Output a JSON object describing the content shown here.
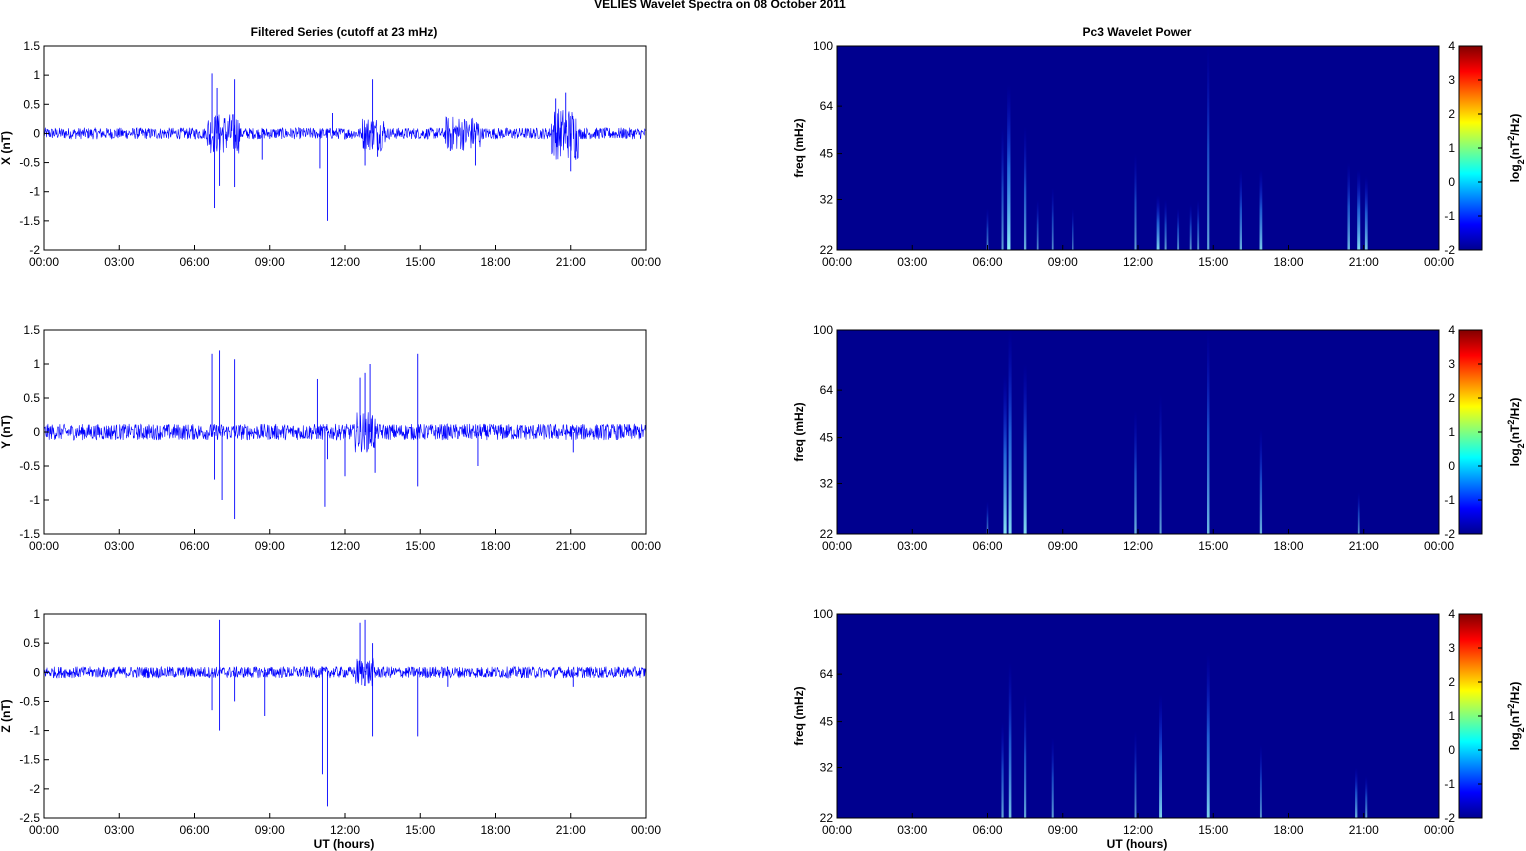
{
  "figure_title": "VELIES Wavelet Spectra on 08 October   2011",
  "left_title": "Filtered Series (cutoff at 23 mHz)",
  "right_title": "Pc3 Wavelet Power",
  "x_label": "UT (hours)",
  "freq_label": "freq (mHz)",
  "cbar_label_base": "log",
  "cbar_label_sub": "2",
  "cbar_label_mid": "(nT",
  "cbar_label_sup": "2",
  "cbar_label_end": "/Hz)",
  "colors": {
    "trace": "#0000ff",
    "background": "#00008f"
  },
  "chart_data": [
    {
      "type": "line",
      "component": "X",
      "ylabel": "X (nT)",
      "xlim": [
        0,
        24
      ],
      "ylim": [
        -2,
        1.5
      ],
      "xticks": [
        "00:00",
        "03:00",
        "06:00",
        "09:00",
        "12:00",
        "15:00",
        "18:00",
        "21:00",
        "00:00"
      ],
      "yticks": [
        "1.5",
        "1",
        "0.5",
        "0",
        "-0.5",
        "-1",
        "-1.5",
        "-2"
      ],
      "ytick_values": [
        1.5,
        1,
        0.5,
        0,
        -0.5,
        -1,
        -1.5,
        -2
      ],
      "baseline_amplitude": 0.1,
      "spikes": [
        [
          6.7,
          1.03
        ],
        [
          6.8,
          -1.28
        ],
        [
          6.9,
          0.78
        ],
        [
          7.0,
          -0.9
        ],
        [
          7.6,
          0.93
        ],
        [
          7.6,
          -0.92
        ],
        [
          8.7,
          -0.45
        ],
        [
          11.0,
          -0.6
        ],
        [
          11.3,
          -1.5
        ],
        [
          11.5,
          0.35
        ],
        [
          12.8,
          -0.55
        ],
        [
          13.1,
          0.93
        ],
        [
          13.3,
          -0.4
        ],
        [
          16.2,
          -0.3
        ],
        [
          17.2,
          -0.55
        ],
        [
          20.4,
          0.6
        ],
        [
          20.8,
          0.7
        ],
        [
          21.0,
          -0.65
        ],
        [
          21.2,
          -0.45
        ]
      ],
      "bursts": [
        [
          6.5,
          7.8,
          0.35
        ],
        [
          12.7,
          13.6,
          0.3
        ],
        [
          16.0,
          17.4,
          0.3
        ],
        [
          20.2,
          21.3,
          0.45
        ]
      ]
    },
    {
      "type": "line",
      "component": "Y",
      "ylabel": "Y (nT)",
      "xlim": [
        0,
        24
      ],
      "ylim": [
        -1.5,
        1.5
      ],
      "xticks": [
        "00:00",
        "03:00",
        "06:00",
        "09:00",
        "12:00",
        "15:00",
        "18:00",
        "21:00",
        "00:00"
      ],
      "yticks": [
        "1.5",
        "1",
        "0.5",
        "0",
        "-0.5",
        "-1",
        "-1.5"
      ],
      "ytick_values": [
        1.5,
        1,
        0.5,
        0,
        -0.5,
        -1,
        -1.5
      ],
      "baseline_amplitude": 0.12,
      "spikes": [
        [
          6.7,
          1.15
        ],
        [
          6.8,
          -0.7
        ],
        [
          7.0,
          1.2
        ],
        [
          7.1,
          -1.0
        ],
        [
          7.6,
          1.07
        ],
        [
          7.6,
          -1.28
        ],
        [
          10.9,
          0.78
        ],
        [
          11.2,
          -1.1
        ],
        [
          11.3,
          -0.4
        ],
        [
          12.0,
          -0.65
        ],
        [
          12.6,
          0.8
        ],
        [
          12.8,
          0.87
        ],
        [
          13.0,
          1.0
        ],
        [
          13.2,
          -0.6
        ],
        [
          14.9,
          1.15
        ],
        [
          14.9,
          -0.8
        ],
        [
          17.3,
          -0.5
        ],
        [
          21.1,
          -0.3
        ]
      ],
      "bursts": [
        [
          12.4,
          13.2,
          0.3
        ]
      ]
    },
    {
      "type": "line",
      "component": "Z",
      "ylabel": "Z (nT)",
      "xlim": [
        0,
        24
      ],
      "ylim": [
        -2.5,
        1
      ],
      "xticks": [
        "00:00",
        "03:00",
        "06:00",
        "09:00",
        "12:00",
        "15:00",
        "18:00",
        "21:00",
        "00:00"
      ],
      "yticks": [
        "1",
        "0.5",
        "0",
        "-0.5",
        "-1",
        "-1.5",
        "-2",
        "-2.5"
      ],
      "ytick_values": [
        1,
        0.5,
        0,
        -0.5,
        -1,
        -1.5,
        -2,
        -2.5
      ],
      "baseline_amplitude": 0.1,
      "spikes": [
        [
          6.7,
          -0.65
        ],
        [
          7.0,
          0.9
        ],
        [
          7.0,
          -1.0
        ],
        [
          7.6,
          -0.5
        ],
        [
          8.8,
          -0.75
        ],
        [
          11.1,
          -1.75
        ],
        [
          11.3,
          -2.3
        ],
        [
          12.6,
          0.85
        ],
        [
          12.8,
          0.9
        ],
        [
          13.1,
          0.5
        ],
        [
          13.1,
          -1.1
        ],
        [
          14.9,
          -1.1
        ],
        [
          16.1,
          -0.25
        ],
        [
          21.1,
          -0.25
        ]
      ],
      "bursts": [
        [
          12.4,
          13.2,
          0.25
        ]
      ]
    },
    {
      "type": "heatmap",
      "title": "Pc3 Wavelet Power",
      "ylabel": "freq (mHz)",
      "xlim": [
        0,
        24
      ],
      "ylim": [
        22,
        100
      ],
      "yscale": "log",
      "xticks": [
        "00:00",
        "03:00",
        "06:00",
        "09:00",
        "12:00",
        "15:00",
        "18:00",
        "21:00",
        "00:00"
      ],
      "yticks": [
        "100",
        "64",
        "45",
        "32",
        "22"
      ],
      "ytick_values": [
        100,
        64,
        45,
        32,
        22
      ],
      "clim": [
        -2,
        4
      ],
      "cbar_ticks": [
        "4",
        "3",
        "2",
        "1",
        "0",
        "-1",
        "-2"
      ],
      "cbar_tick_values": [
        4,
        3,
        2,
        1,
        0,
        -1,
        -2
      ],
      "streaks": [
        [
          6.0,
          30,
          0.4
        ],
        [
          6.6,
          55,
          0.6
        ],
        [
          6.85,
          75,
          1.5
        ],
        [
          7.5,
          55,
          0.8
        ],
        [
          8.0,
          32,
          0.4
        ],
        [
          8.6,
          35,
          0.4
        ],
        [
          9.4,
          30,
          0.2
        ],
        [
          11.9,
          45,
          0.6
        ],
        [
          12.8,
          33,
          1.2
        ],
        [
          13.1,
          32,
          0.6
        ],
        [
          13.6,
          30,
          0.5
        ],
        [
          14.1,
          31,
          0.5
        ],
        [
          14.4,
          32,
          0.5
        ],
        [
          14.8,
          100,
          0.7
        ],
        [
          16.1,
          40,
          0.8
        ],
        [
          16.9,
          40,
          1.1
        ],
        [
          20.4,
          42,
          0.9
        ],
        [
          20.8,
          40,
          1.3
        ],
        [
          21.1,
          38,
          1.1
        ]
      ]
    },
    {
      "type": "heatmap",
      "title": "",
      "ylabel": "freq (mHz)",
      "xlim": [
        0,
        24
      ],
      "ylim": [
        22,
        100
      ],
      "yscale": "log",
      "xticks": [
        "00:00",
        "03:00",
        "06:00",
        "09:00",
        "12:00",
        "15:00",
        "18:00",
        "21:00",
        "00:00"
      ],
      "yticks": [
        "100",
        "64",
        "45",
        "32",
        "22"
      ],
      "ytick_values": [
        100,
        64,
        45,
        32,
        22
      ],
      "clim": [
        -2,
        4
      ],
      "cbar_ticks": [
        "4",
        "3",
        "2",
        "1",
        "0",
        "-1",
        "-2"
      ],
      "cbar_tick_values": [
        4,
        3,
        2,
        1,
        0,
        -1,
        -2
      ],
      "streaks": [
        [
          6.0,
          28,
          0.3
        ],
        [
          6.7,
          72,
          1.4
        ],
        [
          6.9,
          100,
          1.3
        ],
        [
          7.5,
          78,
          1.3
        ],
        [
          11.9,
          55,
          0.8
        ],
        [
          12.9,
          62,
          0.6
        ],
        [
          14.8,
          100,
          0.9
        ],
        [
          16.9,
          48,
          0.8
        ],
        [
          20.8,
          30,
          0.4
        ]
      ]
    },
    {
      "type": "heatmap",
      "title": "",
      "ylabel": "freq (mHz)",
      "xlim": [
        0,
        24
      ],
      "ylim": [
        22,
        100
      ],
      "yscale": "log",
      "xticks": [
        "00:00",
        "03:00",
        "06:00",
        "09:00",
        "12:00",
        "15:00",
        "18:00",
        "21:00",
        "00:00"
      ],
      "yticks": [
        "100",
        "64",
        "45",
        "32",
        "22"
      ],
      "ytick_values": [
        100,
        64,
        45,
        32,
        22
      ],
      "clim": [
        -2,
        4
      ],
      "cbar_ticks": [
        "4",
        "3",
        "2",
        "1",
        "0",
        "-1",
        "-2"
      ],
      "cbar_tick_values": [
        4,
        3,
        2,
        1,
        0,
        -1,
        -2
      ],
      "streaks": [
        [
          6.6,
          45,
          0.7
        ],
        [
          6.9,
          70,
          1.0
        ],
        [
          7.5,
          55,
          0.7
        ],
        [
          8.6,
          40,
          0.6
        ],
        [
          11.9,
          42,
          0.5
        ],
        [
          12.9,
          55,
          1.2
        ],
        [
          14.8,
          75,
          1.2
        ],
        [
          16.9,
          38,
          0.5
        ],
        [
          20.7,
          32,
          0.8
        ],
        [
          21.1,
          30,
          0.6
        ]
      ]
    }
  ]
}
